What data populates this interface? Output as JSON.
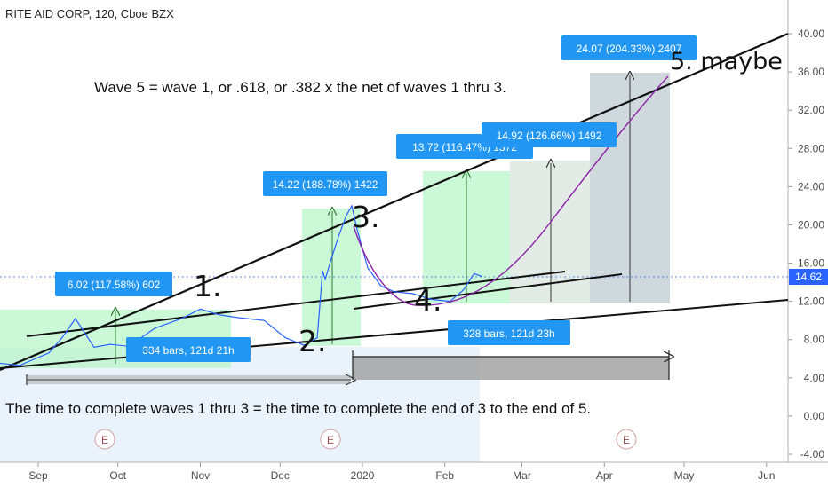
{
  "header": {
    "symbol_title": "RITE AID CORP, 120, Cboe BZX"
  },
  "colors": {
    "price": "#2962ff",
    "measure_box_1": "#b9f6ca",
    "measure_box_2": "#cfd8dc",
    "projection_box": "#90a4ae",
    "label_bg": "#2196f3",
    "curve": "#8e24aa",
    "price_tag": "#2962ff"
  },
  "chart_data": {
    "type": "line",
    "ylim": [
      -4,
      40
    ],
    "y_ticks": [
      "-4.00",
      "0.00",
      "4.00",
      "8.00",
      "12.00",
      "16.00",
      "20.00",
      "24.00",
      "28.00",
      "32.00",
      "36.00",
      "40.00"
    ],
    "x_ticks": [
      "Sep",
      "Oct",
      "Nov",
      "Dec",
      "2020",
      "Feb",
      "Mar",
      "Apr",
      "May",
      "Jun"
    ],
    "last_price": "14.62",
    "series": [
      {
        "x": [
          "2019-08-15",
          "2019-08-25",
          "2019-09-05",
          "2019-09-10",
          "2019-09-15",
          "2019-09-22",
          "2019-09-28",
          "2019-10-05",
          "2019-10-15",
          "2019-10-25",
          "2019-11-01",
          "2019-11-08",
          "2019-11-15",
          "2019-11-25",
          "2019-12-03",
          "2019-12-10",
          "2019-12-15",
          "2019-12-17",
          "2019-12-18",
          "2019-12-20",
          "2019-12-23",
          "2019-12-26",
          "2019-12-28",
          "2019-12-30",
          "2020-01-03",
          "2020-01-08",
          "2020-01-13",
          "2020-01-20",
          "2020-01-27",
          "2020-02-03",
          "2020-02-08",
          "2020-02-12",
          "2020-02-15"
        ],
        "values": [
          5.6,
          5.3,
          6.6,
          8.2,
          10.2,
          7.2,
          7.5,
          7.3,
          9.2,
          10.2,
          11.2,
          10.6,
          10.3,
          10.0,
          8.2,
          7.4,
          8.2,
          15.2,
          14.3,
          16.2,
          18.8,
          21.0,
          22.0,
          19.5,
          15.5,
          13.6,
          13.0,
          12.8,
          12.2,
          12.0,
          13.2,
          14.9,
          14.6
        ]
      }
    ],
    "annotations": {
      "measure_labels": [
        "6.02 (117.58%) 602",
        "14.22 (188.78%) 1422",
        "13.72 (116.47%) 1372",
        "14.92 (126.66%) 1492",
        "24.07 (204.33%) 2407"
      ],
      "bar_labels": [
        "334 bars, 121d 21h",
        "328 bars, 121d 23h"
      ],
      "wave_labels": [
        "1.",
        "2.",
        "3.",
        "4.",
        "5. maybe"
      ],
      "note_top": "Wave 5 = wave 1, or .618, or .382 x the net of waves 1 thru 3.",
      "note_bottom": "The time to complete waves 1 thru 3 = the time to complete the end of 3 to the end of 5.",
      "earnings_marker": "E"
    }
  }
}
